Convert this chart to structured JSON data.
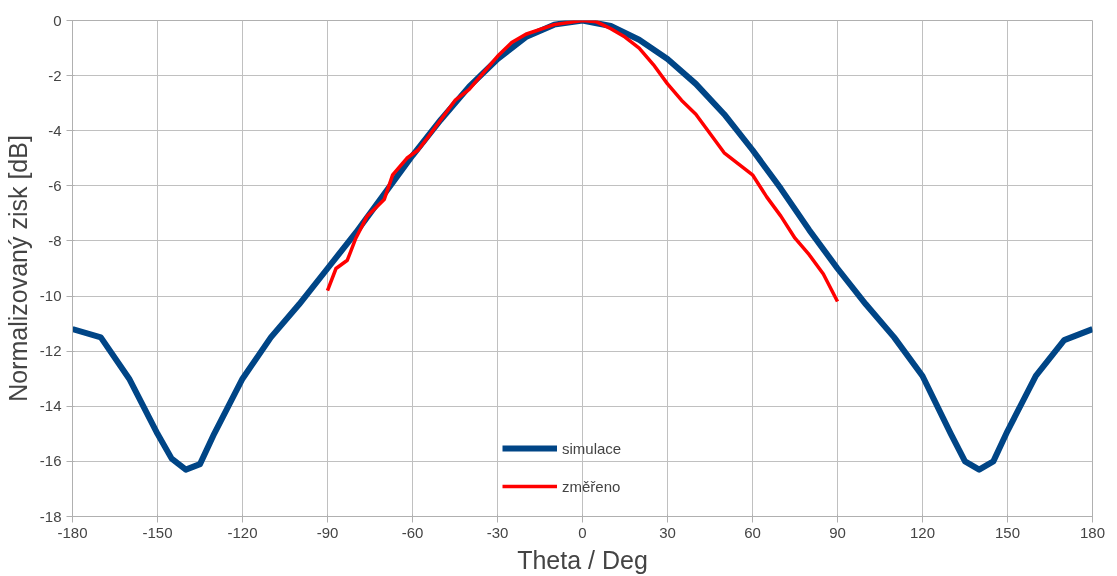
{
  "chart_data": {
    "type": "line",
    "xlabel": "Theta / Deg",
    "ylabel": "Normalizovaný zisk [dB]",
    "xlim": [
      -180,
      180
    ],
    "xticks": [
      -180,
      -150,
      -120,
      -90,
      -60,
      -30,
      0,
      30,
      60,
      90,
      120,
      150,
      180
    ],
    "ylim": [
      -18,
      0
    ],
    "yticks": [
      -18,
      -16,
      -14,
      -12,
      -10,
      -8,
      -6,
      -4,
      -2,
      0
    ],
    "grid": true,
    "legend": "bottom",
    "marker": "none",
    "line_style": "solid",
    "series": [
      {
        "name": "simulace",
        "color": "#004586",
        "x": [
          -180,
          -170,
          -160,
          -150,
          -145,
          -140,
          -135,
          -130,
          -120,
          -110,
          -100,
          -90,
          -80,
          -70,
          -60,
          -50,
          -40,
          -30,
          -20,
          -10,
          0,
          10,
          20,
          30,
          40,
          50,
          60,
          70,
          80,
          90,
          100,
          110,
          120,
          130,
          135,
          140,
          145,
          150,
          160,
          170,
          180
        ],
        "values": [
          -11.2,
          -11.5,
          -13,
          -15,
          -15.9,
          -16.3,
          -16.1,
          -15,
          -13,
          -11.5,
          -10.3,
          -9.0,
          -7.7,
          -6.3,
          -4.9,
          -3.6,
          -2.4,
          -1.4,
          -0.6,
          -0.15,
          0,
          -0.2,
          -0.7,
          -1.4,
          -2.3,
          -3.4,
          -4.7,
          -6.1,
          -7.6,
          -9.0,
          -10.3,
          -11.5,
          -12.9,
          -15,
          -16.0,
          -16.3,
          -16.0,
          -14.9,
          -12.9,
          -11.6,
          -11.2
        ]
      },
      {
        "name": "změřeno",
        "color": "#ff0000",
        "x": [
          -90,
          -87,
          -83,
          -80,
          -76,
          -70,
          -67,
          -62,
          -58,
          -55,
          -50,
          -45,
          -40,
          -35,
          -30,
          -25,
          -20,
          -10,
          0,
          5,
          10,
          15,
          20,
          25,
          30,
          35,
          40,
          45,
          50,
          55,
          60,
          65,
          70,
          75,
          80,
          85,
          90
        ],
        "values": [
          -9.8,
          -9.0,
          -8.7,
          -7.9,
          -7.1,
          -6.5,
          -5.6,
          -5.0,
          -4.7,
          -4.3,
          -3.6,
          -2.9,
          -2.5,
          -1.9,
          -1.3,
          -0.8,
          -0.5,
          -0.15,
          0,
          -0.05,
          -0.3,
          -0.6,
          -1.0,
          -1.6,
          -2.3,
          -2.9,
          -3.4,
          -4.1,
          -4.8,
          -5.2,
          -5.6,
          -6.4,
          -7.1,
          -7.9,
          -8.5,
          -9.2,
          -10.2
        ]
      }
    ]
  }
}
